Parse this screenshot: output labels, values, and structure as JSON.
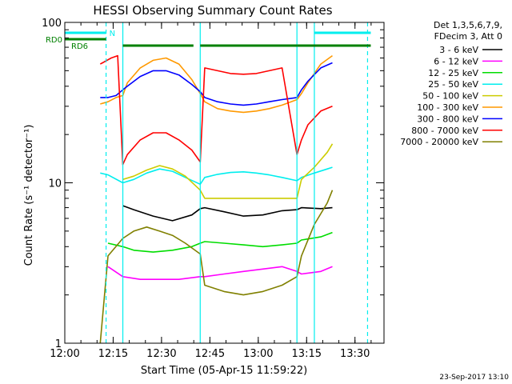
{
  "chart_data": {
    "type": "line",
    "title": "HESSI Observing Summary Count Rates",
    "xlabel": "Start Time (05-Apr-15 11:59:22)",
    "ylabel": "Count Rate (s⁻¹ detector⁻¹)",
    "x_unit": "minutes",
    "xlim": [
      0.6,
      99.6
    ],
    "ylim": [
      1,
      100
    ],
    "y_scale": "log",
    "x_ticks": [
      {
        "t": 0.6,
        "label": "12:00"
      },
      {
        "t": 15.6,
        "label": "12:15"
      },
      {
        "t": 30.6,
        "label": "12:30"
      },
      {
        "t": 45.6,
        "label": "12:45"
      },
      {
        "t": 60.6,
        "label": "13:00"
      },
      {
        "t": 75.6,
        "label": "13:15"
      },
      {
        "t": 90.6,
        "label": "13:30"
      }
    ],
    "y_ticks": [
      {
        "v": 1,
        "label": "1"
      },
      {
        "v": 10,
        "label": "10"
      },
      {
        "v": 100,
        "label": "100"
      }
    ],
    "legend_header": [
      "Det 1,3,5,6,7,9,",
      "FDecim 3, Att 0"
    ],
    "legend_position": "right",
    "grid": false,
    "series": [
      {
        "name": "3 - 6 keV",
        "color": "#000000",
        "x": [
          18.6,
          22,
          28,
          34,
          40,
          42.6,
          44,
          50,
          56,
          62,
          68,
          72.6,
          74,
          80,
          83.6
        ],
        "y": [
          7.2,
          6.8,
          6.2,
          5.8,
          6.3,
          6.9,
          7.0,
          6.6,
          6.2,
          6.3,
          6.7,
          6.8,
          7.0,
          6.9,
          7.0
        ]
      },
      {
        "name": "6 - 12 keV",
        "color": "#ff00ff",
        "x": [
          14,
          18.6,
          24,
          30,
          36,
          42.6,
          44,
          50,
          56,
          62,
          68,
          72.6,
          74,
          80,
          83.6
        ],
        "y": [
          3.0,
          2.6,
          2.5,
          2.5,
          2.5,
          2.6,
          2.6,
          2.7,
          2.8,
          2.9,
          3.0,
          2.8,
          2.7,
          2.8,
          3.0
        ]
      },
      {
        "name": "12 - 25 keV",
        "color": "#00dd00",
        "x": [
          14,
          18.6,
          22,
          28,
          34,
          40,
          42.6,
          44,
          50,
          56,
          62,
          68,
          72.6,
          74,
          80,
          83.6
        ],
        "y": [
          4.2,
          4.0,
          3.8,
          3.7,
          3.8,
          4.0,
          4.2,
          4.3,
          4.2,
          4.1,
          4.0,
          4.1,
          4.2,
          4.4,
          4.6,
          4.9
        ]
      },
      {
        "name": "25 - 50 keV",
        "color": "#00eeee",
        "x": [
          11.6,
          14,
          18.6,
          22,
          26,
          30,
          34,
          38,
          42.6,
          44,
          48,
          52,
          56,
          60,
          64,
          68,
          72.6,
          74,
          78,
          82,
          83.6
        ],
        "y": [
          11.5,
          11.2,
          10.0,
          10.5,
          11.5,
          12.2,
          11.8,
          10.8,
          9.8,
          10.8,
          11.3,
          11.6,
          11.7,
          11.5,
          11.2,
          10.8,
          10.3,
          10.8,
          11.5,
          12.2,
          12.5
        ]
      },
      {
        "name": "50 - 100 keV",
        "color": "#cccc00",
        "x": [
          18.6,
          22,
          26,
          30,
          34,
          38,
          42.6,
          44,
          48,
          52,
          56,
          60,
          64,
          68,
          72.6,
          74,
          78,
          82,
          83.6
        ],
        "y": [
          10.5,
          11.0,
          12.0,
          12.8,
          12.2,
          11.0,
          9.0,
          8.0,
          8.0,
          8.0,
          8.0,
          8.0,
          8.0,
          8.0,
          8.0,
          10.5,
          12.5,
          15.5,
          17.5
        ]
      },
      {
        "name": "100 - 300 keV",
        "color": "#ff9900",
        "x": [
          11.6,
          14,
          16.5,
          18.6,
          20,
          24,
          28,
          32,
          36,
          40,
          42.6,
          44,
          48,
          52,
          56,
          60,
          64,
          68,
          72.6,
          74,
          76,
          80,
          83.6
        ],
        "y": [
          31,
          32,
          34,
          35,
          42,
          52,
          58,
          60,
          55,
          44,
          36,
          32,
          29,
          28,
          27.5,
          28,
          29,
          30.5,
          33,
          36,
          42,
          55,
          62
        ]
      },
      {
        "name": "300 - 800 keV",
        "color": "#0000ff",
        "x": [
          11.6,
          14,
          16.5,
          18.6,
          20,
          24,
          28,
          32,
          36,
          40,
          42.6,
          44,
          48,
          52,
          56,
          60,
          64,
          68,
          72.6,
          74,
          76,
          80,
          83.6
        ],
        "y": [
          34,
          34,
          35,
          38,
          40,
          46,
          50,
          50,
          47,
          41,
          37,
          34,
          32,
          31,
          30.5,
          31,
          32,
          33,
          34,
          38,
          43,
          52,
          56
        ]
      },
      {
        "name": "800 - 7000 keV",
        "color": "#ff0000",
        "x": [
          11.6,
          13,
          15,
          17,
          18.6,
          20,
          24,
          28,
          32,
          36,
          40,
          42.6,
          44,
          48,
          52,
          56,
          60,
          64,
          68,
          72.6,
          74,
          76,
          80,
          83.6
        ],
        "y": [
          55,
          57,
          60,
          62,
          13,
          15,
          18.5,
          20.5,
          20.5,
          18.5,
          16,
          13.5,
          52,
          50,
          48,
          47.5,
          48,
          50,
          52,
          15,
          18.5,
          23,
          28,
          30
        ]
      },
      {
        "name": "7000 - 20000 keV",
        "color": "#808000",
        "x": [
          11.6,
          14,
          18.6,
          22,
          26,
          30,
          34,
          38,
          42.6,
          44,
          50,
          56,
          62,
          68,
          72.6,
          74,
          78,
          82,
          83.6
        ],
        "y": [
          1.0,
          3.5,
          4.5,
          5.0,
          5.3,
          5.0,
          4.7,
          4.2,
          3.6,
          2.3,
          2.1,
          2.0,
          2.1,
          2.3,
          2.6,
          3.5,
          5.5,
          7.5,
          9.0
        ]
      }
    ],
    "vertical_lines": [
      {
        "t": 13.4,
        "color": "#00eeee",
        "style": "dashed"
      },
      {
        "t": 18.6,
        "color": "#00eeee",
        "style": "solid"
      },
      {
        "t": 42.6,
        "color": "#00eeee",
        "style": "solid"
      },
      {
        "t": 72.6,
        "color": "#00eeee",
        "style": "solid"
      },
      {
        "t": 78.0,
        "color": "#00eeee",
        "style": "solid"
      },
      {
        "t": 94.5,
        "color": "#00eeee",
        "style": "dashed"
      }
    ],
    "flag_bars": [
      {
        "label": "N",
        "color": "#00eeee",
        "y_level": "top",
        "segments": [
          [
            0.6,
            13.4
          ],
          [
            78.0,
            95.5
          ]
        ]
      },
      {
        "label": "RD0",
        "color": "#008000",
        "y_level": "mid",
        "segments": [
          [
            0.6,
            13.4
          ]
        ]
      },
      {
        "label": "RD6",
        "color": "#008000",
        "y_level": "low",
        "segments": [
          [
            18.6,
            40.5
          ],
          [
            42.6,
            72.6
          ],
          [
            72.6,
            95.5
          ]
        ]
      }
    ]
  },
  "footer_date": "23-Sep-2017 13:10"
}
